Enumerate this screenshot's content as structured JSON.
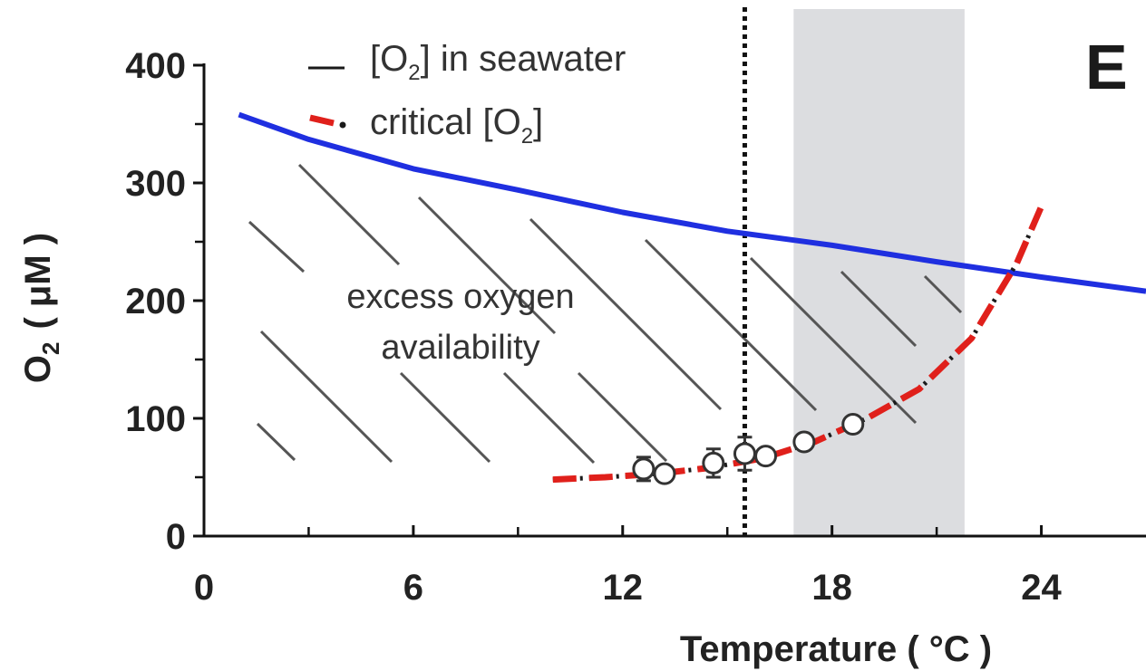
{
  "chart_data": {
    "type": "line",
    "panel_label": "E",
    "xlabel": "Temperature  ( °C )",
    "ylabel_main": "O",
    "ylabel_sub": "2",
    "ylabel_units": "( μM )",
    "xlim": [
      0,
      27
    ],
    "ylim": [
      0,
      400
    ],
    "x_ticks": [
      0,
      6,
      12,
      18,
      24
    ],
    "y_ticks": [
      0,
      100,
      200,
      300,
      400
    ],
    "x_minor_ticks": [
      3,
      9,
      15,
      21
    ],
    "y_minor_ticks": [
      50,
      150,
      250,
      350
    ],
    "grid": false,
    "legend_position": "top-left",
    "legend": [
      {
        "label_pre": "[O",
        "label_sub": "2",
        "label_post": "] in seawater",
        "style": "solid",
        "color": "#1a1a1a"
      },
      {
        "label_pre": "critical [O",
        "label_sub": "2",
        "label_post": "]",
        "style": "dash-dot",
        "color": "#e0201b"
      }
    ],
    "annotation": {
      "line1": "excess oxygen",
      "line2": "availability"
    },
    "shaded_region": {
      "x": [
        16.9,
        21.8
      ],
      "color": "#dcdde0"
    },
    "vertical_reference_line": {
      "x": 15.5,
      "style": "dotted"
    },
    "series": [
      {
        "name": "[O2] in seawater",
        "color": "#1f2fe0",
        "x": [
          1,
          3,
          6,
          9,
          12,
          15,
          18,
          21,
          24,
          27
        ],
        "y": [
          358,
          337,
          312,
          294,
          275,
          259,
          247,
          233,
          220,
          208
        ]
      },
      {
        "name": "critical [O2]",
        "color": "#e0201b",
        "style": "dash-dot",
        "x": [
          10,
          11.5,
          13,
          14.5,
          16,
          17.5,
          19,
          20.5,
          22,
          23.3,
          24
        ],
        "y": [
          48,
          50,
          53,
          58,
          66,
          80,
          100,
          125,
          168,
          232,
          280
        ]
      }
    ],
    "measurements": {
      "x": [
        12.6,
        13.2,
        14.6,
        15.5,
        16.1,
        17.2,
        18.6
      ],
      "y": [
        57,
        53,
        62,
        70,
        68,
        80,
        95
      ],
      "y_err": [
        10,
        0,
        12,
        14,
        0,
        0,
        0
      ],
      "marker": "open-circle"
    }
  }
}
